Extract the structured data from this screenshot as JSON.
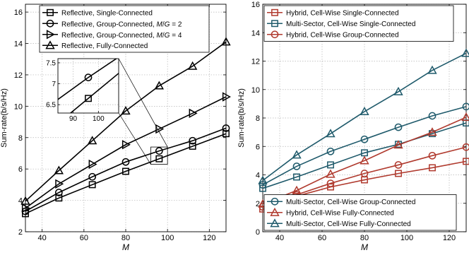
{
  "chart_data": [
    {
      "type": "line",
      "xlabel": "M",
      "ylabel": "Sum-rate(b/s/Hz)",
      "xlim": [
        32,
        128
      ],
      "ylim": [
        2,
        16.5
      ],
      "xticks": [
        40,
        60,
        80,
        100,
        120
      ],
      "yticks": [
        2,
        4,
        6,
        8,
        10,
        12,
        14,
        16
      ],
      "grid": true,
      "legend_position": "top-left",
      "x": [
        32,
        48,
        64,
        80,
        96,
        112,
        128
      ],
      "series": [
        {
          "name": "Reflective, Single-Connected",
          "marker": "square",
          "color": "#000000",
          "values": [
            3.15,
            4.15,
            5.0,
            5.85,
            6.65,
            7.45,
            8.25
          ]
        },
        {
          "name_parts": [
            "Reflective, Group-Connected, ",
            "M",
            "/",
            "G",
            " = 2"
          ],
          "marker": "circle",
          "color": "#000000",
          "values": [
            3.3,
            4.5,
            5.5,
            6.45,
            7.15,
            7.8,
            8.6
          ]
        },
        {
          "name_parts": [
            "Reflective, Group-Connected, ",
            "M",
            "/",
            "G",
            " = 4"
          ],
          "marker": "triangle-right",
          "color": "#000000",
          "values": [
            3.5,
            5.05,
            6.3,
            7.55,
            8.55,
            9.55,
            10.6
          ]
        },
        {
          "name": "Reflective, Fully-Connected",
          "marker": "triangle-up",
          "color": "#000000",
          "values": [
            3.95,
            5.9,
            7.8,
            9.7,
            11.3,
            12.55,
            14.1
          ]
        }
      ],
      "inset": {
        "xlim": [
          84,
          108
        ],
        "ylim": [
          6.3,
          7.6
        ],
        "xticks": [
          90,
          100
        ],
        "yticks": [
          6.5,
          7,
          7.5
        ],
        "ytick_labels": [
          "6.5",
          "7",
          "7.5"
        ],
        "zoom_region": {
          "xlim": [
            92,
            100
          ],
          "ylim": [
            6.3,
            7.4
          ]
        }
      }
    },
    {
      "type": "line",
      "xlabel": "M",
      "ylabel": "Sum-rate(b/s/Hz)",
      "xlim": [
        32,
        128
      ],
      "ylim": [
        0,
        16
      ],
      "xticks": [
        40,
        60,
        80,
        100,
        120
      ],
      "yticks": [
        0,
        2,
        4,
        6,
        8,
        10,
        12,
        14,
        16
      ],
      "grid": true,
      "legend_position": [
        "top-left",
        "bottom-right"
      ],
      "x": [
        32,
        48,
        64,
        80,
        96,
        112,
        128
      ],
      "series": [
        {
          "name": "Hybrid, Cell-Wise Single-Connected",
          "marker": "square",
          "color": "#b03a2e",
          "legend": 1,
          "values": [
            1.6,
            2.5,
            3.15,
            3.65,
            4.1,
            4.5,
            4.95
          ]
        },
        {
          "name": "Multi-Sector, Cell-Wise Single-Connected",
          "marker": "square",
          "color": "#1f5a6b",
          "legend": 1,
          "values": [
            3.05,
            3.85,
            4.7,
            5.55,
            6.15,
            6.9,
            7.65
          ]
        },
        {
          "name": "Hybrid, Cell-Wise Group-Connected",
          "marker": "circle",
          "color": "#b03a2e",
          "legend": 1,
          "values": [
            1.75,
            2.6,
            3.4,
            4.1,
            4.7,
            5.35,
            5.95
          ]
        },
        {
          "name": "Multi-Sector, Cell-Wise Group-Connected",
          "marker": "circle",
          "color": "#1f5a6b",
          "legend": 2,
          "values": [
            3.3,
            4.6,
            5.65,
            6.5,
            7.35,
            8.15,
            8.8
          ]
        },
        {
          "name": "Hybrid, Cell-Wise Fully-Connected",
          "marker": "triangle-up",
          "color": "#b03a2e",
          "legend": 2,
          "values": [
            1.95,
            2.9,
            4.05,
            5.0,
            6.1,
            7.0,
            8.05
          ]
        },
        {
          "name": "Multi-Sector, Cell-Wise Fully-Connected",
          "marker": "triangle-up",
          "color": "#1f5a6b",
          "legend": 2,
          "values": [
            3.6,
            5.4,
            6.9,
            8.45,
            9.85,
            11.35,
            12.55
          ]
        }
      ]
    }
  ]
}
